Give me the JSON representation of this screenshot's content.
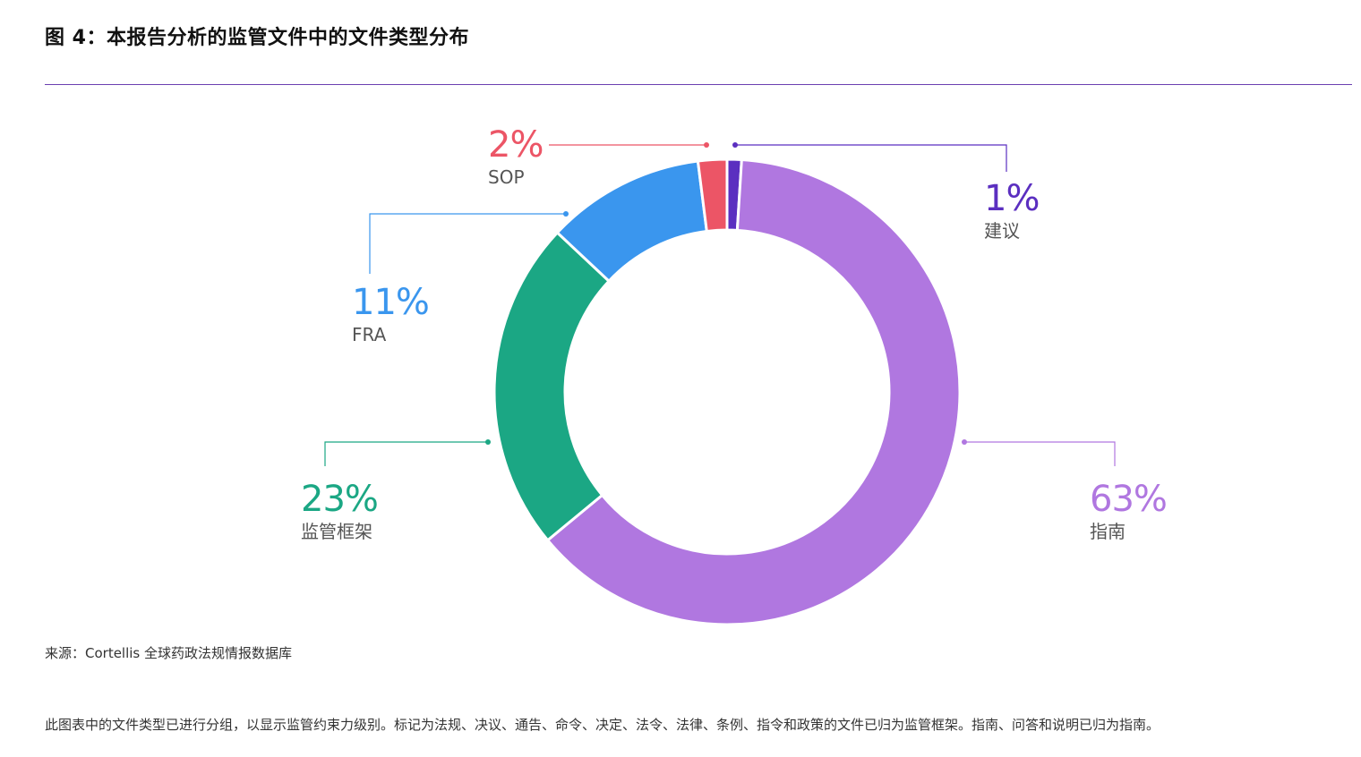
{
  "title": "图 4：本报告分析的监管文件中的文件类型分布",
  "source": "来源：Cortellis 全球药政法规情报数据库",
  "note": "此图表中的文件类型已进行分组，以显示监管约束力级别。标记为法规、决议、通告、命令、决定、法令、法律、条例、指令和政策的文件已归为监管框架。指南、问答和说明已归为指南。",
  "labels": {
    "advice": {
      "pct": "1%",
      "name": "建议"
    },
    "guidance": {
      "pct": "63%",
      "name": "指南"
    },
    "framework": {
      "pct": "23%",
      "name": "监管框架"
    },
    "fra": {
      "pct": "11%",
      "name": "FRA"
    },
    "sop": {
      "pct": "2%",
      "name": "SOP"
    }
  },
  "chart_data": {
    "type": "pie",
    "subtype": "donut",
    "title": "图 4：本报告分析的监管文件中的文件类型分布",
    "categories": [
      "建议",
      "指南",
      "监管框架",
      "FRA",
      "SOP"
    ],
    "values": [
      1,
      63,
      23,
      11,
      2
    ],
    "unit": "%",
    "colors": [
      "#5b2fc0",
      "#b077e0",
      "#1ba784",
      "#3a96ee",
      "#ec5566"
    ],
    "start_angle": "12 o'clock, clockwise",
    "legend": "callout labels",
    "source": "来源：Cortellis 全球药政法规情报数据库"
  }
}
